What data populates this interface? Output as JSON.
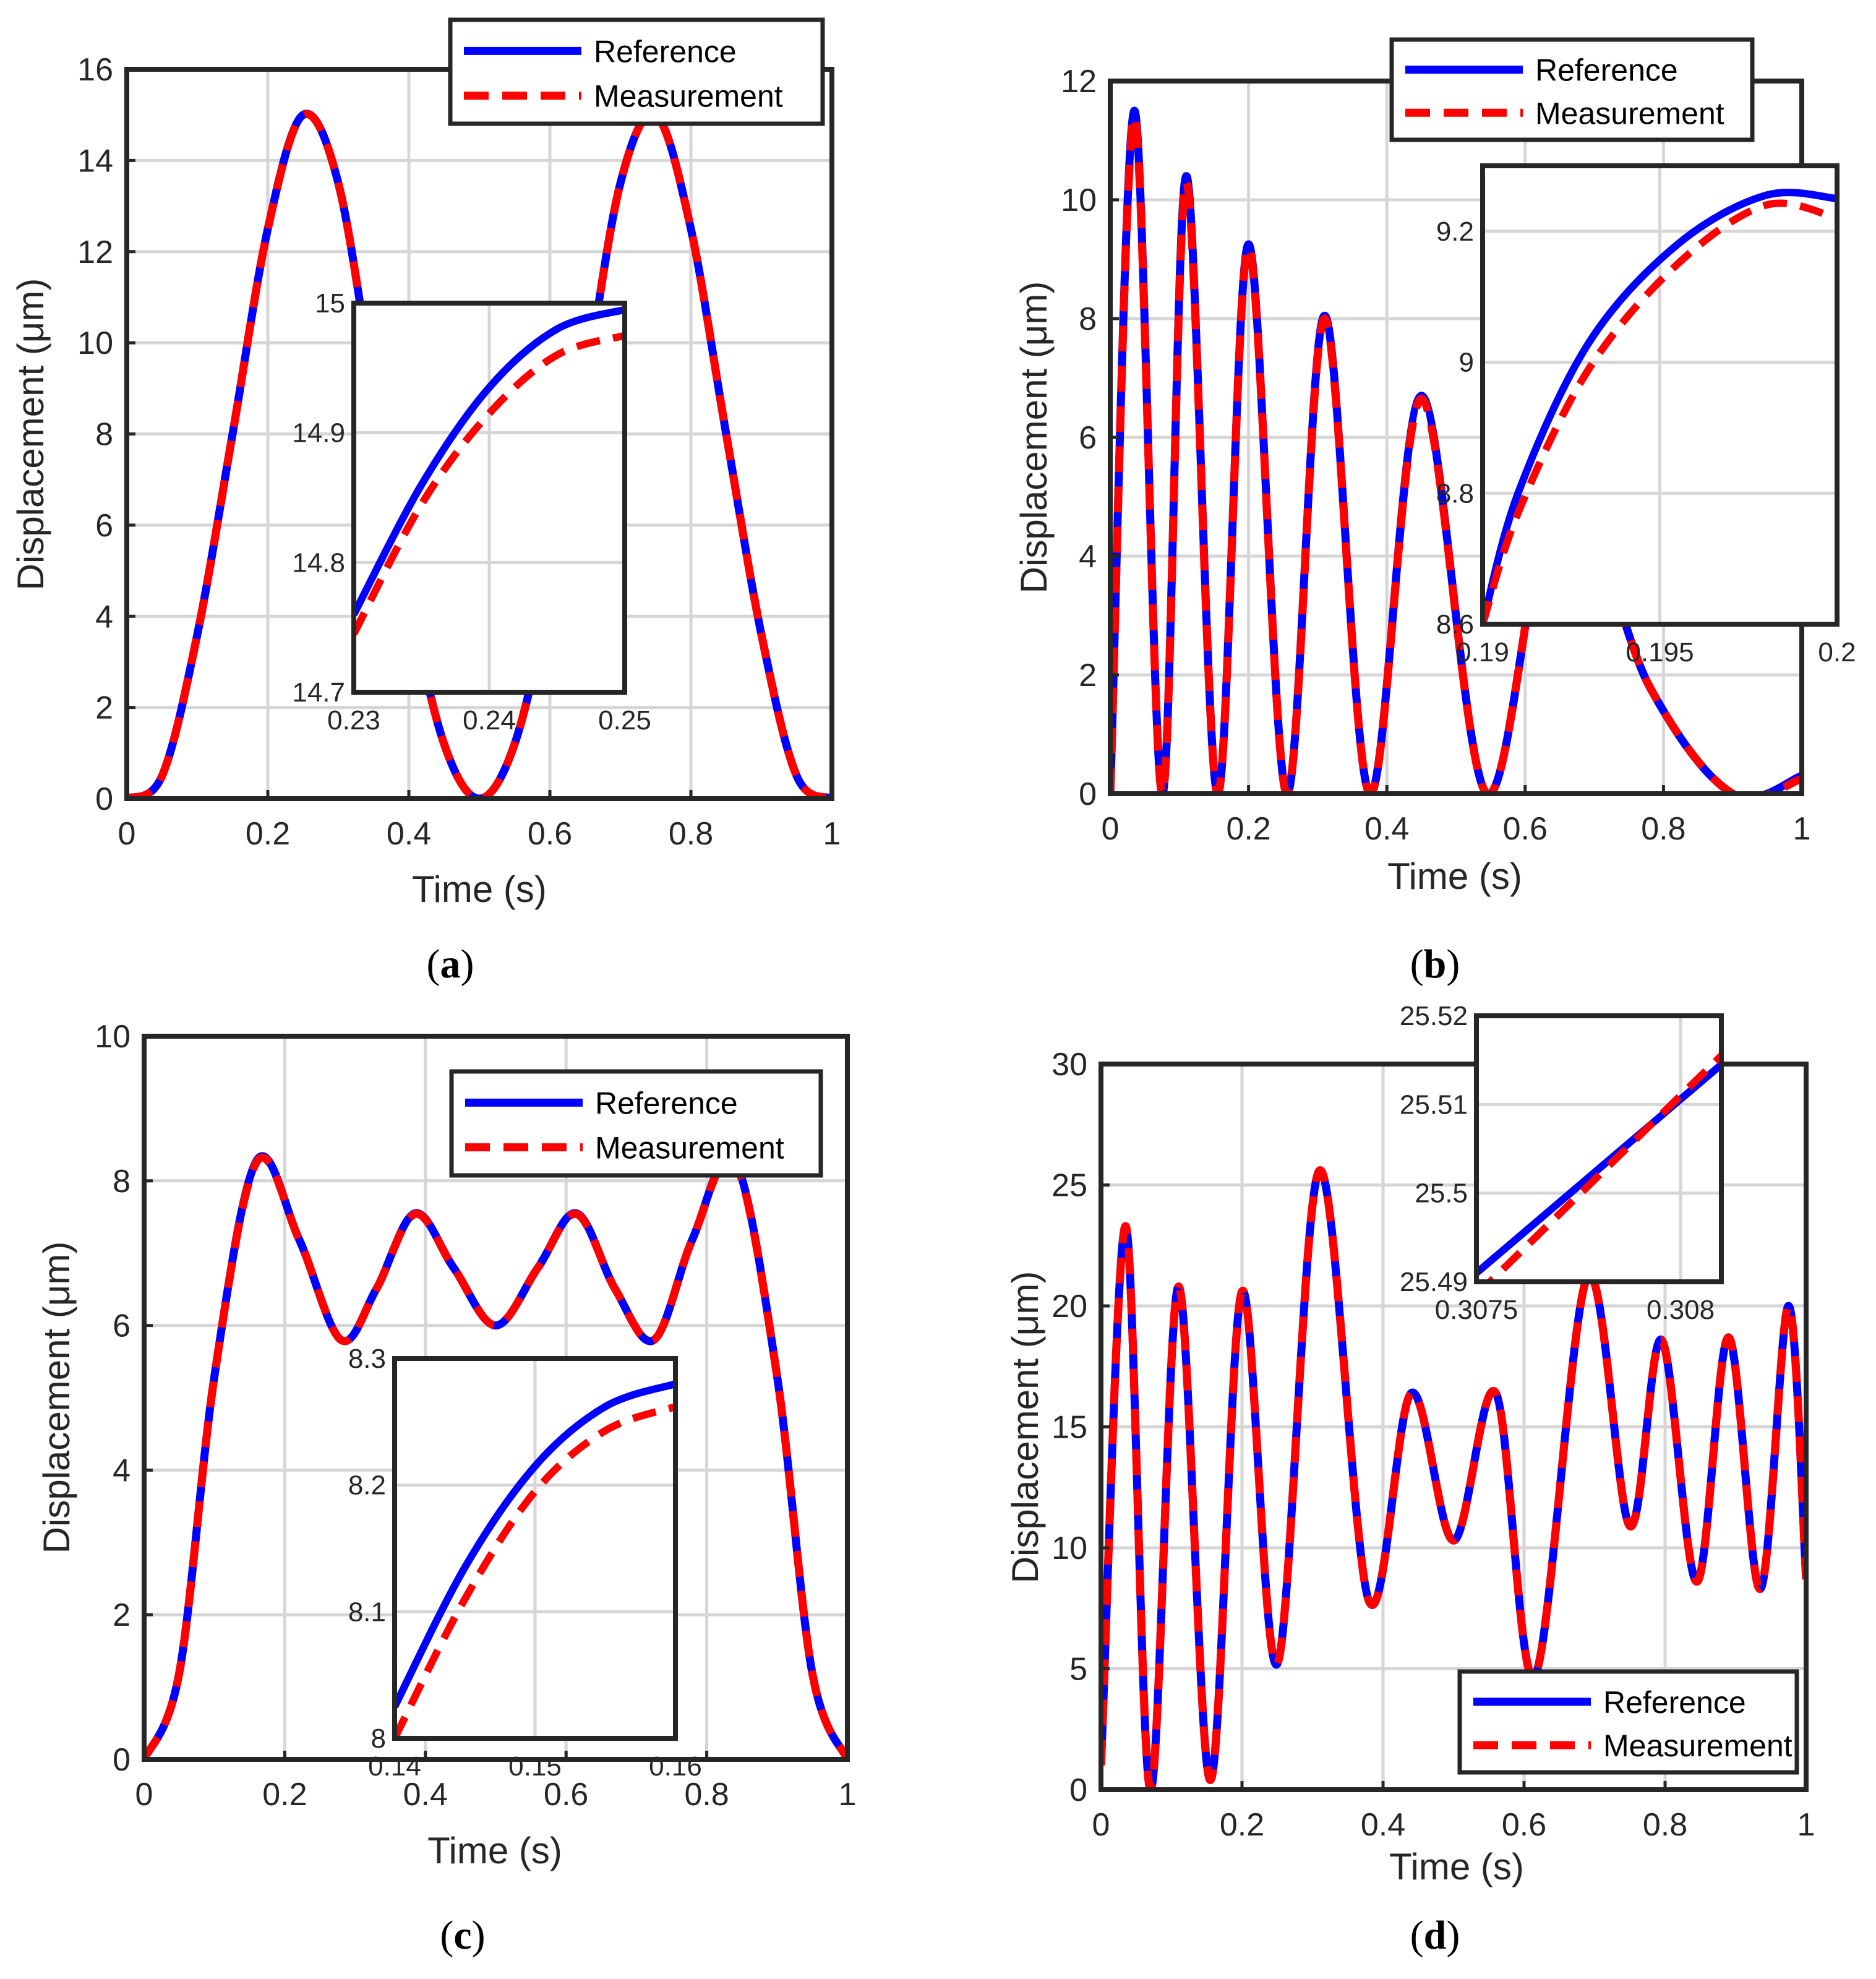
{
  "colors": {
    "reference": "#0000ff",
    "measurement": "#ff0000",
    "axes": "#262626",
    "grid": "#d6d6d6"
  },
  "chart_data": [
    {
      "id": "a",
      "type": "line",
      "caption_label": "a",
      "xlabel": "Time (s)",
      "ylabel": "Displacement (μm)",
      "xlim": [
        0,
        1
      ],
      "ylim": [
        0,
        16
      ],
      "xticks": [
        0,
        0.2,
        0.4,
        0.6,
        0.8,
        1
      ],
      "xtick_labels": [
        "0",
        "0.2",
        "0.4",
        "0.6",
        "0.8",
        "1"
      ],
      "yticks": [
        0,
        2,
        4,
        6,
        8,
        10,
        12,
        14,
        16
      ],
      "ytick_labels": [
        "0",
        "2",
        "4",
        "6",
        "8",
        "10",
        "12",
        "14",
        "16"
      ],
      "grid": true,
      "legend": {
        "entries": [
          "Reference",
          "Measurement"
        ],
        "position": "top-right"
      },
      "series": [
        {
          "name": "Reference",
          "style": "solid",
          "x": [
            0,
            0.05,
            0.1,
            0.15,
            0.2,
            0.25,
            0.3,
            0.35,
            0.4,
            0.45,
            0.5,
            0.55,
            0.6,
            0.65,
            0.7,
            0.75,
            0.8,
            0.85,
            0.9,
            0.95,
            1
          ],
          "y": [
            0,
            0.5,
            3.6,
            8.0,
            12.5,
            15.0,
            13.5,
            9.0,
            4.5,
            1.2,
            0,
            1.2,
            4.5,
            9.0,
            13.5,
            15.0,
            12.5,
            8.0,
            3.6,
            0.5,
            0
          ]
        },
        {
          "name": "Measurement",
          "style": "dashed",
          "x": [
            0,
            0.05,
            0.1,
            0.15,
            0.2,
            0.25,
            0.3,
            0.35,
            0.4,
            0.45,
            0.5,
            0.55,
            0.6,
            0.65,
            0.7,
            0.75,
            0.8,
            0.85,
            0.9,
            0.95,
            1
          ],
          "y": [
            0,
            0.5,
            3.6,
            8.0,
            12.5,
            14.99,
            13.5,
            9.0,
            4.5,
            1.2,
            0,
            1.2,
            4.5,
            9.0,
            13.5,
            14.99,
            12.5,
            8.0,
            3.6,
            0.5,
            0
          ]
        }
      ],
      "inset": {
        "xlim": [
          0.23,
          0.25
        ],
        "ylim": [
          14.7,
          15
        ],
        "xticks": [
          0.23,
          0.24,
          0.25
        ],
        "xtick_labels": [
          "0.23",
          "0.24",
          "0.25"
        ],
        "yticks": [
          14.7,
          14.8,
          14.9,
          15
        ],
        "ytick_labels": [
          "14.7",
          "14.8",
          "14.9",
          "15"
        ],
        "series": [
          {
            "name": "Reference",
            "style": "solid",
            "x": [
              0.23,
              0.235,
              0.24,
              0.245,
              0.25
            ],
            "y": [
              14.76,
              14.86,
              14.935,
              14.98,
              14.995
            ]
          },
          {
            "name": "Measurement",
            "style": "dashed",
            "x": [
              0.23,
              0.235,
              0.24,
              0.245,
              0.25
            ],
            "y": [
              14.745,
              14.845,
              14.915,
              14.96,
              14.975
            ]
          }
        ]
      }
    },
    {
      "id": "b",
      "type": "line",
      "caption_label": "b",
      "xlabel": "Time (s)",
      "ylabel": "Displacement (μm)",
      "xlim": [
        0,
        1
      ],
      "ylim": [
        0,
        12
      ],
      "xticks": [
        0,
        0.2,
        0.4,
        0.6,
        0.8,
        1
      ],
      "xtick_labels": [
        "0",
        "0.2",
        "0.4",
        "0.6",
        "0.8",
        "1"
      ],
      "yticks": [
        0,
        2,
        4,
        6,
        8,
        10,
        12
      ],
      "ytick_labels": [
        "0",
        "2",
        "4",
        "6",
        "8",
        "10",
        "12"
      ],
      "grid": true,
      "legend": {
        "entries": [
          "Reference",
          "Measurement"
        ],
        "position": "top-right"
      },
      "series": [
        {
          "name": "Reference",
          "style": "solid",
          "x": [
            0,
            0.035,
            0.075,
            0.11,
            0.155,
            0.2,
            0.255,
            0.31,
            0.375,
            0.45,
            0.545,
            0.65,
            0.78,
            0.9,
            1
          ],
          "y": [
            0,
            11.5,
            0,
            10.4,
            0,
            9.25,
            0,
            8.05,
            0,
            6.7,
            0,
            5.3,
            1.8,
            0,
            0.3
          ]
        },
        {
          "name": "Measurement",
          "style": "dashed",
          "x": [
            0,
            0.035,
            0.075,
            0.11,
            0.155,
            0.2,
            0.255,
            0.31,
            0.375,
            0.45,
            0.545,
            0.65,
            0.78,
            0.9,
            1
          ],
          "y": [
            0,
            11.4,
            0,
            10.3,
            0,
            9.2,
            0,
            8.0,
            0,
            6.65,
            0,
            5.3,
            1.8,
            0,
            0.25
          ]
        }
      ],
      "inset": {
        "xlim": [
          0.19,
          0.2
        ],
        "ylim": [
          8.6,
          9.3
        ],
        "xticks": [
          0.19,
          0.195,
          0.2
        ],
        "xtick_labels": [
          "0.19",
          "0.195",
          "0.2"
        ],
        "yticks": [
          8.6,
          8.8,
          9,
          9.2
        ],
        "ytick_labels": [
          "8.6",
          "8.8",
          "9",
          "9.2"
        ],
        "series": [
          {
            "name": "Reference",
            "style": "solid",
            "x": [
              0.19,
              0.191,
              0.193,
              0.1955,
              0.198,
              0.2
            ],
            "y": [
              8.6,
              8.8,
              9.03,
              9.18,
              9.255,
              9.25
            ]
          },
          {
            "name": "Measurement",
            "style": "dashed",
            "x": [
              0.19,
              0.191,
              0.193,
              0.1955,
              0.198,
              0.2
            ],
            "y": [
              8.6,
              8.77,
              8.99,
              9.15,
              9.24,
              9.22
            ]
          }
        ]
      }
    },
    {
      "id": "c",
      "type": "line",
      "caption_label": "c",
      "xlabel": "Time (s)",
      "ylabel": "Displacement (μm)",
      "xlim": [
        0,
        1
      ],
      "ylim": [
        0,
        10
      ],
      "xticks": [
        0,
        0.2,
        0.4,
        0.6,
        0.8,
        1
      ],
      "xtick_labels": [
        "0",
        "0.2",
        "0.4",
        "0.6",
        "0.8",
        "1"
      ],
      "yticks": [
        0,
        2,
        4,
        6,
        8,
        10
      ],
      "ytick_labels": [
        "0",
        "2",
        "4",
        "6",
        "8",
        "10"
      ],
      "grid": true,
      "legend": {
        "entries": [
          "Reference",
          "Measurement"
        ],
        "position": "top-right"
      },
      "series": [
        {
          "name": "Reference",
          "style": "solid",
          "x": [
            0,
            0.05,
            0.1,
            0.16,
            0.22,
            0.28,
            0.33,
            0.385,
            0.44,
            0.5,
            0.56,
            0.615,
            0.67,
            0.725,
            0.78,
            0.84,
            0.9,
            0.95,
            1
          ],
          "y": [
            0,
            1.2,
            5.3,
            8.28,
            7.2,
            5.8,
            6.5,
            7.55,
            6.8,
            6.0,
            6.8,
            7.55,
            6.5,
            5.8,
            7.2,
            8.28,
            5.3,
            1.2,
            0
          ]
        },
        {
          "name": "Measurement",
          "style": "dashed",
          "x": [
            0,
            0.05,
            0.1,
            0.16,
            0.22,
            0.28,
            0.33,
            0.385,
            0.44,
            0.5,
            0.56,
            0.615,
            0.67,
            0.725,
            0.78,
            0.84,
            0.9,
            0.95,
            1
          ],
          "y": [
            0,
            1.2,
            5.3,
            8.26,
            7.2,
            5.8,
            6.5,
            7.54,
            6.8,
            6.0,
            6.8,
            7.54,
            6.5,
            5.8,
            7.2,
            8.26,
            5.3,
            1.2,
            0
          ]
        }
      ],
      "inset": {
        "xlim": [
          0.14,
          0.16
        ],
        "ylim": [
          8,
          8.3
        ],
        "xticks": [
          0.14,
          0.15,
          0.16
        ],
        "xtick_labels": [
          "0.14",
          "0.15",
          "0.16"
        ],
        "yticks": [
          8,
          8.1,
          8.2,
          8.3
        ],
        "ytick_labels": [
          "8",
          "8.1",
          "8.2",
          "8.3"
        ],
        "series": [
          {
            "name": "Reference",
            "style": "solid",
            "x": [
              0.14,
              0.145,
              0.15,
              0.155,
              0.16
            ],
            "y": [
              8.025,
              8.135,
              8.215,
              8.262,
              8.28
            ]
          },
          {
            "name": "Measurement",
            "style": "dashed",
            "x": [
              0.14,
              0.145,
              0.15,
              0.155,
              0.16
            ],
            "y": [
              8.0,
              8.11,
              8.195,
              8.243,
              8.262
            ]
          }
        ]
      }
    },
    {
      "id": "d",
      "type": "line",
      "caption_label": "d",
      "xlabel": "Time (s)",
      "ylabel": "Displacement (μm)",
      "xlim": [
        0,
        1
      ],
      "ylim": [
        0,
        30
      ],
      "xticks": [
        0,
        0.2,
        0.4,
        0.6,
        0.8,
        1
      ],
      "xtick_labels": [
        "0",
        "0.2",
        "0.4",
        "0.6",
        "0.8",
        "1"
      ],
      "yticks": [
        0,
        5,
        10,
        15,
        20,
        25,
        30
      ],
      "ytick_labels": [
        "0",
        "5",
        "10",
        "15",
        "20",
        "25",
        "30"
      ],
      "grid": true,
      "legend": {
        "entries": [
          "Reference",
          "Measurement"
        ],
        "position": "bottom-right"
      },
      "series": [
        {
          "name": "Reference",
          "style": "solid",
          "x": [
            0,
            0.035,
            0.07,
            0.11,
            0.155,
            0.2,
            0.25,
            0.31,
            0.38,
            0.44,
            0.5,
            0.56,
            0.615,
            0.69,
            0.75,
            0.795,
            0.845,
            0.89,
            0.935,
            0.975,
            1
          ],
          "y": [
            1,
            23.3,
            0,
            20.8,
            0.4,
            20.6,
            5.2,
            25.6,
            7.8,
            16.4,
            10.3,
            16.4,
            4.7,
            21.2,
            10.9,
            18.6,
            8.6,
            18.7,
            8.3,
            20.0,
            8.7
          ]
        },
        {
          "name": "Measurement",
          "style": "dashed",
          "x": [
            0,
            0.035,
            0.07,
            0.11,
            0.155,
            0.2,
            0.25,
            0.31,
            0.38,
            0.44,
            0.5,
            0.56,
            0.615,
            0.69,
            0.75,
            0.795,
            0.845,
            0.89,
            0.935,
            0.975,
            1
          ],
          "y": [
            1,
            23.3,
            0,
            20.8,
            0.4,
            20.6,
            5.2,
            25.6,
            7.8,
            16.4,
            10.3,
            16.4,
            4.7,
            21.2,
            10.9,
            18.6,
            8.6,
            18.7,
            8.3,
            20.0,
            8.7
          ]
        }
      ],
      "inset": {
        "xlim": [
          0.3075,
          0.3081
        ],
        "ylim": [
          25.49,
          25.52
        ],
        "xticks": [
          0.3075,
          0.308
        ],
        "xtick_labels": [
          "0.3075",
          "0.308"
        ],
        "yticks": [
          25.49,
          25.5,
          25.51,
          25.52
        ],
        "ytick_labels": [
          "25.49",
          "25.5",
          "25.51",
          "25.52"
        ],
        "series": [
          {
            "name": "Reference",
            "style": "solid",
            "x": [
              0.3075,
              0.3081
            ],
            "y": [
              25.491,
              25.5145
            ]
          },
          {
            "name": "Measurement",
            "style": "dashed",
            "x": [
              0.3075,
              0.3081
            ],
            "y": [
              25.4885,
              25.5155
            ]
          }
        ]
      }
    }
  ]
}
